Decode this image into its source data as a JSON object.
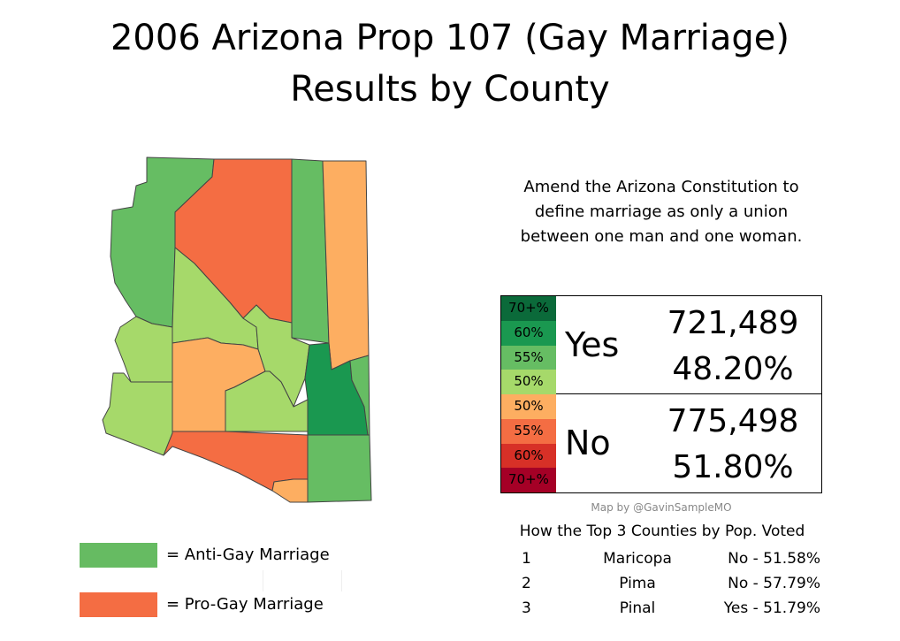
{
  "title_line1": "2006 Arizona Prop 107 (Gay Marriage)",
  "title_line2": "Results by County",
  "description_line1": "Amend the Arizona Constitution to",
  "description_line2": "define marriage as only a union",
  "description_line3": "between one man and one woman.",
  "colors": {
    "anti": "#66bb62",
    "pro": "#f46d43",
    "yes70": "#0b6a3a",
    "yes60": "#1a9850",
    "yes55": "#66bd63",
    "yes50": "#a6d96a",
    "no50": "#fdae61",
    "no55": "#f46d43",
    "no60": "#d73027",
    "no70": "#a50026"
  },
  "scale": [
    {
      "label": "70+%",
      "color": "#0b6a3a"
    },
    {
      "label": "60%",
      "color": "#1a9850"
    },
    {
      "label": "55%",
      "color": "#66bd63"
    },
    {
      "label": "50%",
      "color": "#a6d96a"
    },
    {
      "label": "50%",
      "color": "#fdae61"
    },
    {
      "label": "55%",
      "color": "#f46d43"
    },
    {
      "label": "60%",
      "color": "#d73027"
    },
    {
      "label": "70+%",
      "color": "#a50026"
    }
  ],
  "results": {
    "yes": {
      "label": "Yes",
      "votes": "721,489",
      "pct": "48.20%"
    },
    "no": {
      "label": "No",
      "votes": "775,498",
      "pct": "51.80%"
    }
  },
  "credit": "Map by @GavinSampleMO",
  "top3": {
    "heading": "How the Top 3 Counties by Pop. Voted",
    "rows": [
      {
        "rank": "1",
        "county": "Maricopa",
        "result": "No - 51.58%"
      },
      {
        "rank": "2",
        "county": "Pima",
        "result": "No - 57.79%"
      },
      {
        "rank": "3",
        "county": "Pinal",
        "result": "Yes - 51.79%"
      }
    ]
  },
  "legend": {
    "anti": "=  Anti-Gay Marriage",
    "pro": "=  Pro-Gay Marriage"
  }
}
